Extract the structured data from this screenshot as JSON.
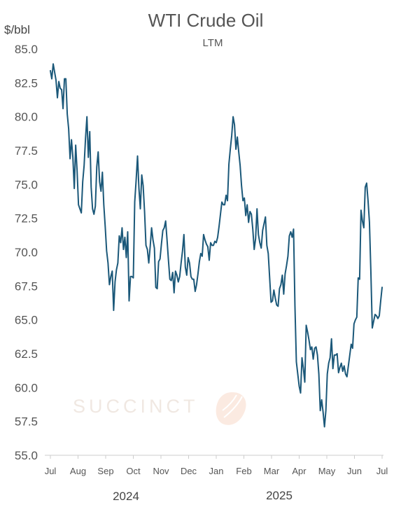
{
  "chart_data": {
    "type": "line",
    "title": "WTI Crude Oil",
    "subtitle": "LTM",
    "ylabel": "$/bbl",
    "ylim": [
      55.0,
      85.0
    ],
    "yticks": [
      "85.0",
      "82.5",
      "80.0",
      "77.5",
      "75.0",
      "72.5",
      "70.0",
      "67.5",
      "65.0",
      "62.5",
      "60.0",
      "57.5",
      "55.0"
    ],
    "xticks": [
      "Jul",
      "Aug",
      "Sep",
      "Oct",
      "Nov",
      "Dec",
      "Jan",
      "Feb",
      "Mar",
      "Apr",
      "May",
      "Jun",
      "Jul"
    ],
    "years": [
      "2024",
      "2025"
    ],
    "grid": false,
    "watermark": "SUCCINCT",
    "line_color": "#1b5879",
    "watermark_color": "#f7d2bd",
    "series": [
      {
        "values": [
          83.4,
          82.8,
          83.9,
          83.3,
          82.7,
          81.4,
          82.6,
          82.1,
          82.0,
          80.6,
          82.8,
          82.8,
          80.2,
          79.1,
          76.9,
          78.3,
          77.0,
          74.7,
          77.9,
          76.0,
          73.5,
          73.2,
          72.9,
          75.2,
          76.4,
          78.4,
          80.0,
          77.0,
          78.9,
          74.8,
          73.2,
          72.8,
          73.4,
          76.3,
          77.4,
          75.2,
          74.5,
          75.9,
          73.5,
          71.9,
          70.1,
          69.2,
          67.6,
          68.2,
          68.6,
          65.7,
          67.8,
          68.7,
          69.2,
          71.2,
          70.7,
          71.8,
          70.2,
          71.1,
          69.6,
          71.5,
          66.4,
          68.2,
          68.2,
          68.1,
          73.7,
          75.3,
          77.1,
          74.7,
          73.2,
          75.7,
          74.9,
          73.0,
          70.5,
          70.2,
          69.2,
          70.4,
          71.8,
          70.9,
          70.3,
          67.4,
          67.3,
          69.3,
          69.5,
          70.6,
          71.6,
          71.8,
          72.3,
          70.9,
          69.4,
          68.0,
          67.9,
          68.5,
          67.0,
          68.6,
          68.3,
          67.8,
          68.2,
          69.2,
          70.1,
          71.3,
          68.9,
          68.3,
          69.6,
          69.2,
          68.2,
          68.0,
          68.0,
          67.1,
          67.6,
          68.4,
          69.3,
          69.9,
          69.7,
          71.3,
          70.9,
          70.6,
          70.4,
          69.4,
          70.7,
          70.5,
          70.5,
          70.8,
          70.7,
          71.1,
          71.9,
          72.8,
          73.7,
          73.5,
          73.5,
          74.2,
          73.8,
          76.5,
          77.6,
          78.6,
          80.0,
          79.4,
          77.6,
          78.5,
          77.4,
          76.4,
          74.9,
          73.8,
          74.0,
          72.7,
          73.5,
          72.2,
          73.0,
          72.8,
          71.7,
          70.2,
          71.0,
          73.2,
          71.3,
          70.7,
          70.3,
          71.6,
          72.1,
          72.6,
          70.5,
          69.9,
          68.1,
          66.3,
          66.4,
          67.2,
          66.6,
          66.1,
          66.0,
          67.3,
          67.6,
          68.3,
          66.9,
          68.4,
          69.0,
          69.7,
          71.2,
          71.5,
          71.1,
          71.7,
          66.0,
          61.9,
          61.0,
          60.1,
          59.6,
          62.2,
          61.4,
          60.4,
          64.6,
          64.1,
          63.5,
          62.8,
          63.0,
          62.1,
          62.9,
          63.0,
          62.4,
          61.0,
          58.3,
          59.1,
          58.2,
          57.1,
          58.3,
          61.0,
          61.8,
          62.2,
          63.6,
          61.4,
          62.4,
          62.4,
          62.5,
          61.1,
          61.5,
          61.8,
          61.2,
          61.6,
          61.0,
          60.8,
          61.6,
          62.4,
          63.2,
          62.9,
          64.7,
          65.0,
          65.2,
          68.1,
          68.0,
          73.1,
          72.3,
          71.8,
          74.8,
          75.1,
          73.8,
          72.2,
          68.6,
          64.4,
          64.9,
          65.4,
          65.3,
          65.1,
          65.3,
          66.4,
          67.4
        ]
      }
    ]
  }
}
